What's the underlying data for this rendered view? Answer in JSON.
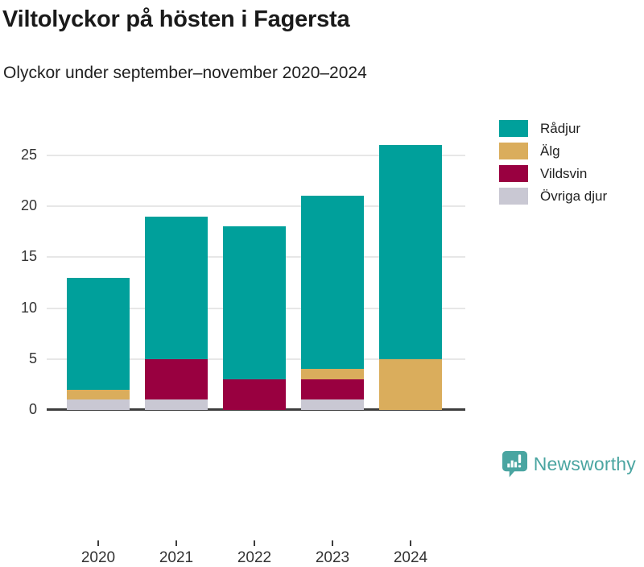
{
  "title": "Viltolyckor på hösten i Fagersta",
  "subtitle": "Olyckor under september–november 2020–2024",
  "branding": {
    "logo_text": "Newsworthy",
    "logo_color": "#4AA5A1"
  },
  "colors": {
    "grid": "#E7E7E7",
    "axis": "#3D3D3D",
    "tick_label": "#333333",
    "text": "#1A1A1A"
  },
  "chart_data": {
    "type": "bar",
    "stacked": true,
    "title": "Viltolyckor på hösten i Fagersta",
    "subtitle": "Olyckor under september–november 2020–2024",
    "categories": [
      "2020",
      "2021",
      "2022",
      "2023",
      "2024"
    ],
    "series": [
      {
        "name": "Rådjur",
        "color": "#00A09B",
        "values": [
          11,
          14,
          15,
          17,
          21
        ]
      },
      {
        "name": "Älg",
        "color": "#DAAD5C",
        "values": [
          1,
          0,
          0,
          1,
          5
        ]
      },
      {
        "name": "Vildsvin",
        "color": "#990040",
        "values": [
          0,
          4,
          3,
          2,
          0
        ]
      },
      {
        "name": "Övriga djur",
        "color": "#C9C8D3",
        "values": [
          1,
          1,
          0,
          1,
          0
        ]
      }
    ],
    "stack_order_bottom_to_top": [
      "Övriga djur",
      "Vildsvin",
      "Älg",
      "Rådjur"
    ],
    "totals": [
      13,
      19,
      18,
      21,
      26
    ],
    "yticks": [
      0,
      5,
      10,
      15,
      20,
      25
    ],
    "ylim": [
      0,
      27.6
    ],
    "xlabel": "",
    "ylabel": "",
    "grid": true,
    "legend_position": "right-top"
  }
}
